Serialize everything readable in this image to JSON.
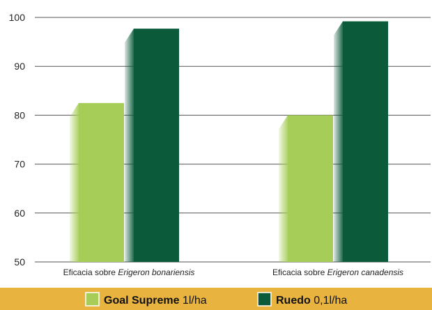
{
  "colors": {
    "light_green": "#a6cd57",
    "dark_green": "#0b5b3a",
    "legend_band": "#e8b33e",
    "gridline": "#555555"
  },
  "chart_data": {
    "type": "bar",
    "categories": [
      {
        "prefix": "Eficacia sobre ",
        "italic": "Erigeron bonariensis"
      },
      {
        "prefix": "Eficacia sobre ",
        "italic": "Erigeron canadensis"
      }
    ],
    "series": [
      {
        "name_bold": "Goal Supreme",
        "name_rest": " 1l/ha",
        "color": "#a6cd57",
        "values": [
          82.5,
          80
        ]
      },
      {
        "name_bold": "Ruedo",
        "name_rest": " 0,1l/ha",
        "color": "#0b5b3a",
        "values": [
          97.7,
          99.2
        ]
      }
    ],
    "ylim": [
      50,
      100
    ],
    "yticks": [
      100,
      90,
      80,
      70,
      60,
      50
    ],
    "grid": true,
    "legend_position": "bottom"
  }
}
